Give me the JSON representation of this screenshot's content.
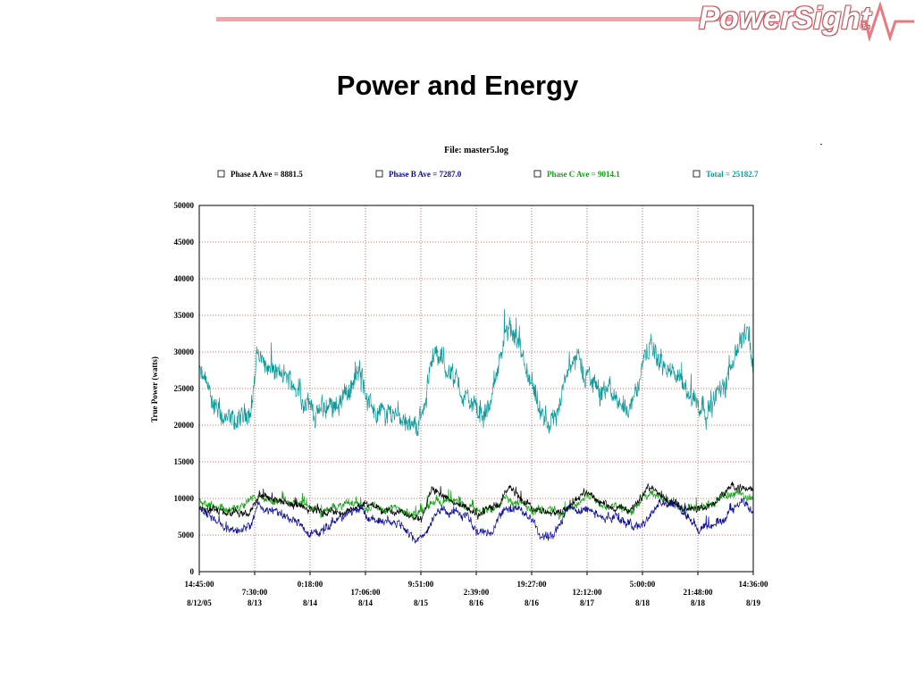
{
  "page": {
    "title": "Power and Energy",
    "logo_text": "PowerSight",
    "logo_mark": "®"
  },
  "colors": {
    "accent_line": "#f2a3a8",
    "logo_outline": "#c9555c",
    "phase_a": "#000000",
    "phase_b": "#0a0a9e",
    "phase_c": "#12a312",
    "total": "#0d9999",
    "grid": "#e04040"
  },
  "chart_data": {
    "type": "line",
    "title": "File: master5.log",
    "ylabel": "True Power (watts)",
    "xlabel": "",
    "ylim": [
      0,
      50000
    ],
    "yticks": [
      0,
      5000,
      10000,
      15000,
      20000,
      25000,
      30000,
      35000,
      40000,
      45000,
      50000
    ],
    "xlim": [
      0,
      10
    ],
    "xticks": [
      {
        "x": 0,
        "time": "14:45:00",
        "date": "8/12/05"
      },
      {
        "x": 1,
        "time": "7:30:00",
        "date": "8/13"
      },
      {
        "x": 2,
        "time": "0:18:00",
        "date": "8/14"
      },
      {
        "x": 3,
        "time": "17:06:00",
        "date": "8/14"
      },
      {
        "x": 4,
        "time": "9:51:00",
        "date": "8/15"
      },
      {
        "x": 5,
        "time": "2:39:00",
        "date": "8/16"
      },
      {
        "x": 6,
        "time": "19:27:00",
        "date": "8/16"
      },
      {
        "x": 7,
        "time": "12:12:00",
        "date": "8/17"
      },
      {
        "x": 8,
        "time": "5:00:00",
        "date": "8/18"
      },
      {
        "x": 9,
        "time": "21:48:00",
        "date": "8/18"
      },
      {
        "x": 10,
        "time": "14:36:00",
        "date": "8/19"
      }
    ],
    "grid": true,
    "legend_position": "top",
    "legend": [
      {
        "label": "Phase A Ave = 8881.5",
        "color": "#000000"
      },
      {
        "label": "Phase B Ave = 7287.0",
        "color": "#0a0a9e"
      },
      {
        "label": "Phase C Ave = 9014.1",
        "color": "#12a312"
      },
      {
        "label": "Total = 25182.7",
        "color": "#0d9999"
      }
    ],
    "series": [
      {
        "name": "Total = 25182.7",
        "color": "#0d9999",
        "noise": 2200,
        "x": [
          0,
          0.15,
          0.35,
          0.55,
          0.75,
          0.95,
          1.05,
          1.25,
          1.5,
          1.75,
          1.95,
          2.1,
          2.4,
          2.7,
          2.9,
          3.05,
          3.3,
          3.6,
          3.9,
          4.05,
          4.2,
          4.45,
          4.7,
          4.9,
          5.05,
          5.25,
          5.45,
          5.6,
          5.8,
          6.0,
          6.15,
          6.35,
          6.55,
          6.75,
          6.95,
          7.2,
          7.45,
          7.7,
          7.9,
          8.05,
          8.25,
          8.5,
          8.75,
          8.95,
          9.2,
          9.45,
          9.7,
          9.9,
          10.0
        ],
        "values": [
          27000,
          25000,
          21500,
          20000,
          20500,
          23000,
          30000,
          28000,
          26500,
          25500,
          23000,
          21500,
          22500,
          25000,
          27000,
          23000,
          21500,
          22000,
          19500,
          22000,
          30000,
          28000,
          25000,
          23000,
          21000,
          22500,
          30000,
          33000,
          29000,
          25000,
          21000,
          20000,
          24000,
          30000,
          27000,
          25500,
          24000,
          22500,
          24500,
          30000,
          29500,
          27000,
          25000,
          23500,
          22500,
          25000,
          31000,
          33000,
          28000
        ]
      },
      {
        "name": "Phase C Ave = 9014.1",
        "color": "#12a312",
        "noise": 800,
        "x": [
          0,
          0.3,
          0.55,
          0.8,
          1.0,
          1.3,
          1.6,
          1.9,
          2.2,
          2.5,
          2.8,
          3.0,
          3.3,
          3.6,
          3.8,
          4.0,
          4.3,
          4.6,
          4.9,
          5.1,
          5.3,
          5.5,
          5.7,
          6.0,
          6.3,
          6.6,
          6.8,
          7.0,
          7.3,
          7.6,
          7.8,
          8.0,
          8.3,
          8.6,
          8.9,
          9.1,
          9.4,
          9.7,
          10.0
        ],
        "values": [
          9800,
          9000,
          8500,
          8800,
          10200,
          9600,
          9400,
          9200,
          8200,
          8800,
          9500,
          9000,
          8600,
          8500,
          7500,
          8200,
          9800,
          9500,
          9000,
          8000,
          8800,
          10500,
          9500,
          8600,
          8400,
          8000,
          9200,
          10300,
          9000,
          8600,
          8000,
          10000,
          10500,
          9200,
          8500,
          8800,
          9800,
          10800,
          10000
        ]
      },
      {
        "name": "Phase A Ave = 8881.5",
        "color": "#000000",
        "noise": 700,
        "x": [
          0,
          0.4,
          0.9,
          1.1,
          1.5,
          2.0,
          2.5,
          3.0,
          3.5,
          4.0,
          4.2,
          4.6,
          5.0,
          5.4,
          5.6,
          6.0,
          6.5,
          7.0,
          7.3,
          7.8,
          8.1,
          8.4,
          8.8,
          9.2,
          9.6,
          10.0
        ],
        "values": [
          9000,
          8000,
          7800,
          10500,
          9500,
          8500,
          8000,
          9000,
          8500,
          7500,
          11000,
          9500,
          7800,
          9000,
          11500,
          8500,
          8000,
          11000,
          9200,
          8200,
          11800,
          10000,
          8600,
          8800,
          11500,
          11000
        ]
      },
      {
        "name": "Phase B Ave = 7287.0",
        "color": "#0a0a9e",
        "noise": 800,
        "x": [
          0,
          0.25,
          0.45,
          0.7,
          0.95,
          1.05,
          1.3,
          1.6,
          1.85,
          2.0,
          2.3,
          2.6,
          2.9,
          3.05,
          3.4,
          3.7,
          3.9,
          4.1,
          4.3,
          4.6,
          4.85,
          5.0,
          5.25,
          5.5,
          5.75,
          5.95,
          6.15,
          6.4,
          6.65,
          6.9,
          7.1,
          7.35,
          7.6,
          7.85,
          8.05,
          8.3,
          8.55,
          8.8,
          9.0,
          9.3,
          9.6,
          9.8,
          10.0
        ],
        "values": [
          8500,
          7500,
          6000,
          5500,
          6500,
          9000,
          8200,
          7500,
          6200,
          5200,
          6000,
          7500,
          8500,
          7200,
          7000,
          6500,
          4200,
          5500,
          8500,
          8200,
          7500,
          5500,
          5000,
          8800,
          8500,
          7500,
          5000,
          4800,
          8500,
          8800,
          8000,
          7500,
          7200,
          6200,
          6500,
          9500,
          9200,
          7500,
          6000,
          6000,
          8500,
          9500,
          8500
        ]
      }
    ]
  }
}
